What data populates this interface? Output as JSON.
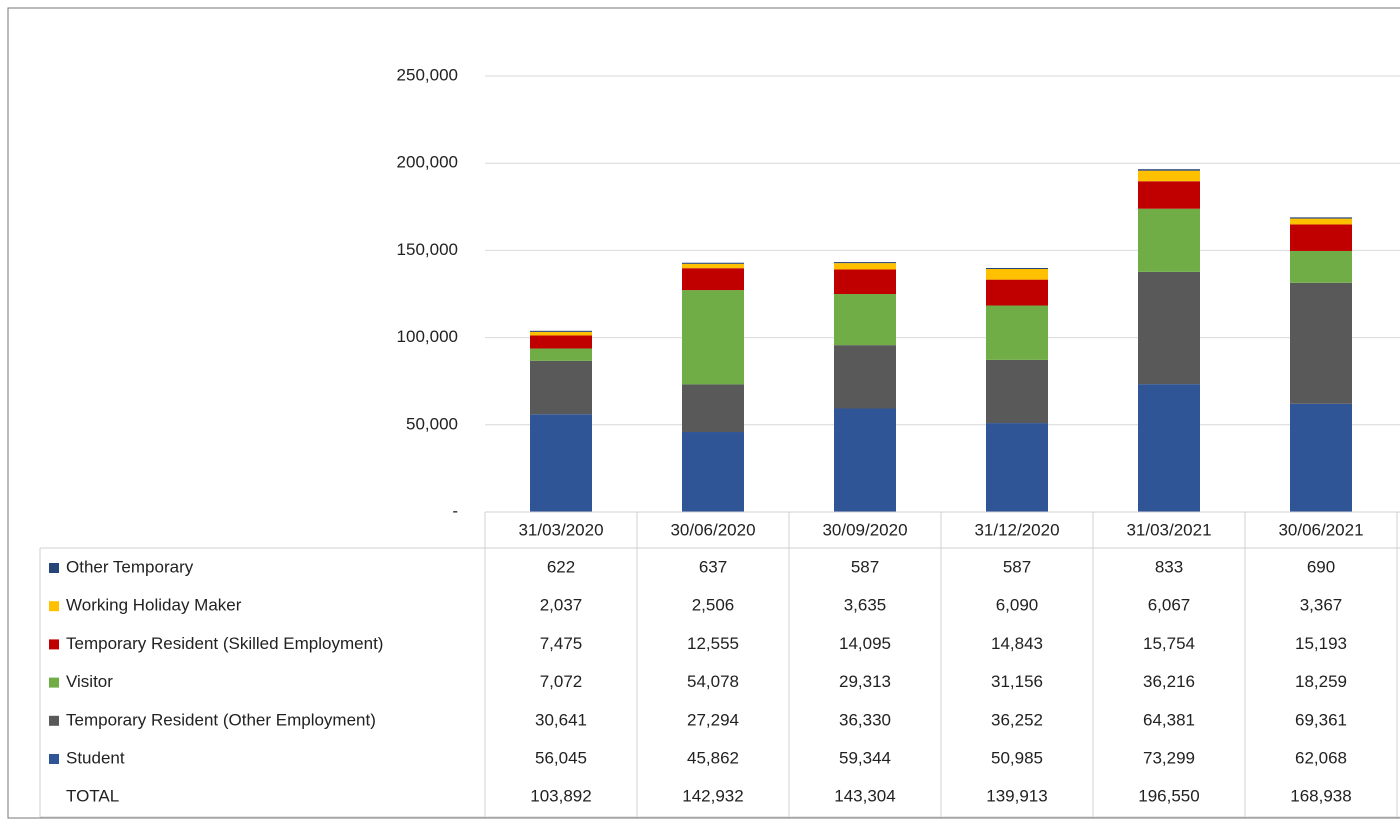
{
  "chart_data": {
    "type": "stacked_bar",
    "categories": [
      "31/03/2020",
      "30/06/2020",
      "30/09/2020",
      "31/12/2020",
      "31/03/2021",
      "30/06/2021"
    ],
    "series": [
      {
        "name": "Student",
        "color": "#2f5597",
        "values": [
          56045,
          45862,
          59344,
          50985,
          73299,
          62068
        ],
        "value_labels": [
          "56,045",
          "45,862",
          "59,344",
          "50,985",
          "73,299",
          "62,068"
        ]
      },
      {
        "name": "Temporary Resident (Other Employment)",
        "color": "#595959",
        "values": [
          30641,
          27294,
          36330,
          36252,
          64381,
          69361
        ],
        "value_labels": [
          "30,641",
          "27,294",
          "36,330",
          "36,252",
          "64,381",
          "69,361"
        ]
      },
      {
        "name": "Visitor",
        "color": "#70ad47",
        "values": [
          7072,
          54078,
          29313,
          31156,
          36216,
          18259
        ],
        "value_labels": [
          "7,072",
          "54,078",
          "29,313",
          "31,156",
          "36,216",
          "18,259"
        ]
      },
      {
        "name": "Temporary Resident (Skilled Employment)",
        "color": "#c00000",
        "values": [
          7475,
          12555,
          14095,
          14843,
          15754,
          15193
        ],
        "value_labels": [
          "7,475",
          "12,555",
          "14,095",
          "14,843",
          "15,754",
          "15,193"
        ]
      },
      {
        "name": "Working Holiday Maker",
        "color": "#ffc000",
        "values": [
          2037,
          2506,
          3635,
          6090,
          6067,
          3367
        ],
        "value_labels": [
          "2,037",
          "2,506",
          "3,635",
          "6,090",
          "6,067",
          "3,367"
        ]
      },
      {
        "name": "Other Temporary",
        "color": "#264478",
        "values": [
          622,
          637,
          587,
          587,
          833,
          690
        ],
        "value_labels": [
          "622",
          "637",
          "587",
          "587",
          "833",
          "690"
        ]
      }
    ],
    "totals": {
      "name": "TOTAL",
      "labels": [
        "103,892",
        "142,932",
        "143,304",
        "139,913",
        "196,550",
        "168,938"
      ]
    },
    "ylim": [
      0,
      250000
    ],
    "yticks": [
      {
        "value": 0,
        "label": "-"
      },
      {
        "value": 50000,
        "label": "50,000"
      },
      {
        "value": 100000,
        "label": "100,000"
      },
      {
        "value": 150000,
        "label": "150,000"
      },
      {
        "value": 200000,
        "label": "200,000"
      },
      {
        "value": 250000,
        "label": "250,000"
      }
    ],
    "grid": true
  }
}
